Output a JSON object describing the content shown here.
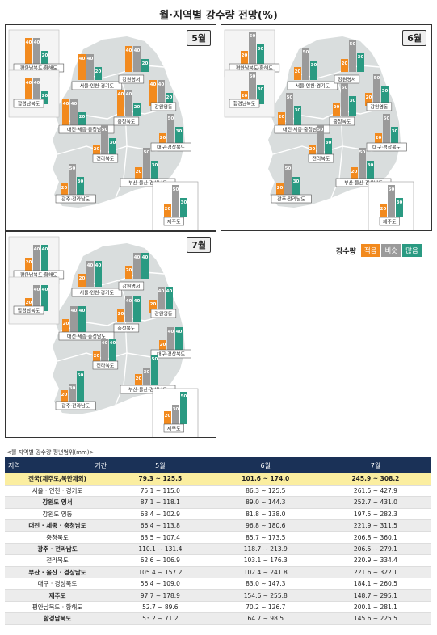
{
  "title": "월·지역별 강수량 전망(%)",
  "colors": {
    "low": "#f28a1e",
    "normal": "#9a9a9a",
    "high": "#2a9a82",
    "land": "#d9dddd",
    "border": "#ffffff",
    "header": "#1a3157",
    "highlight": "#fbeea0"
  },
  "legend": {
    "title": "강수량",
    "items": [
      "적음",
      "비슷",
      "많음"
    ]
  },
  "panels": [
    {
      "month": "5월",
      "regions": [
        {
          "name": "평안남북도·황해도",
          "values": [
            40,
            40,
            20
          ]
        },
        {
          "name": "함경남북도",
          "values": [
            40,
            40,
            20
          ]
        },
        {
          "name": "서울·인천·경기도",
          "values": [
            40,
            40,
            20
          ]
        },
        {
          "name": "강원영서",
          "values": [
            40,
            40,
            20
          ]
        },
        {
          "name": "강원영동",
          "values": [
            40,
            40,
            20
          ]
        },
        {
          "name": "대전·세종·충청남도",
          "values": [
            40,
            40,
            20
          ]
        },
        {
          "name": "충청북도",
          "values": [
            40,
            40,
            20
          ]
        },
        {
          "name": "대구·경상북도",
          "values": [
            20,
            50,
            30
          ]
        },
        {
          "name": "전라북도",
          "values": [
            20,
            50,
            30
          ]
        },
        {
          "name": "부산·울산·경상남도",
          "values": [
            20,
            50,
            30
          ]
        },
        {
          "name": "광주·전라남도",
          "values": [
            20,
            50,
            30
          ]
        },
        {
          "name": "제주도",
          "values": [
            20,
            50,
            30
          ]
        }
      ]
    },
    {
      "month": "6월",
      "regions": [
        {
          "name": "평안남북도·황해도",
          "values": [
            20,
            50,
            30
          ]
        },
        {
          "name": "함경남북도",
          "values": [
            20,
            50,
            30
          ]
        },
        {
          "name": "서울·인천·경기도",
          "values": [
            20,
            50,
            30
          ]
        },
        {
          "name": "강원영서",
          "values": [
            20,
            50,
            30
          ]
        },
        {
          "name": "강원영동",
          "values": [
            20,
            50,
            30
          ]
        },
        {
          "name": "대전·세종·충청남도",
          "values": [
            20,
            50,
            30
          ]
        },
        {
          "name": "충청북도",
          "values": [
            20,
            50,
            30
          ]
        },
        {
          "name": "대구·경상북도",
          "values": [
            20,
            50,
            30
          ]
        },
        {
          "name": "전라북도",
          "values": [
            20,
            50,
            30
          ]
        },
        {
          "name": "부산·울산·경상남도",
          "values": [
            20,
            50,
            30
          ]
        },
        {
          "name": "광주·전라남도",
          "values": [
            20,
            50,
            30
          ]
        },
        {
          "name": "제주도",
          "values": [
            20,
            50,
            30
          ]
        }
      ]
    },
    {
      "month": "7월",
      "regions": [
        {
          "name": "평안남북도·황해도",
          "values": [
            20,
            40,
            40
          ]
        },
        {
          "name": "함경남북도",
          "values": [
            20,
            40,
            40
          ]
        },
        {
          "name": "서울·인천·경기도",
          "values": [
            20,
            40,
            40
          ]
        },
        {
          "name": "강원영서",
          "values": [
            20,
            40,
            40
          ]
        },
        {
          "name": "강원영동",
          "values": [
            20,
            40,
            40
          ]
        },
        {
          "name": "대전·세종·충청남도",
          "values": [
            20,
            40,
            40
          ]
        },
        {
          "name": "충청북도",
          "values": [
            20,
            40,
            40
          ]
        },
        {
          "name": "대구·경상북도",
          "values": [
            20,
            40,
            40
          ]
        },
        {
          "name": "전라북도",
          "values": [
            20,
            40,
            40
          ]
        },
        {
          "name": "부산·울산·경상남도",
          "values": [
            20,
            30,
            50
          ]
        },
        {
          "name": "광주·전라남도",
          "values": [
            20,
            30,
            50
          ]
        },
        {
          "name": "제주도",
          "values": [
            20,
            30,
            50
          ]
        }
      ]
    }
  ],
  "table": {
    "caption": "<월·지역별 강수량 평년범위(mm)>",
    "corner_region": "지역",
    "corner_period": "기간",
    "months": [
      "5월",
      "6월",
      "7월"
    ],
    "rows": [
      {
        "region": "전국(제주도,북한제외)",
        "m5": "79.3 ~ 125.5",
        "m6": "101.6 ~ 174.0",
        "m7": "245.9 ~ 308.2"
      },
      {
        "region": "서울 · 인천 · 경기도",
        "m5": "75.1 ~ 115.0",
        "m6": "86.3 ~ 125.5",
        "m7": "261.5 ~ 427.9"
      },
      {
        "region": "강원도 영서",
        "m5": "87.1 ~ 118.1",
        "m6": "89.0 ~ 144.3",
        "m7": "252.7 ~ 431.0"
      },
      {
        "region": "강원도 영동",
        "m5": "63.4 ~ 102.9",
        "m6": "81.8 ~ 138.0",
        "m7": "197.5 ~ 282.3"
      },
      {
        "region": "대전 · 세종 · 충청남도",
        "m5": "66.4 ~ 113.8",
        "m6": "96.8 ~ 180.6",
        "m7": "221.9 ~ 311.5"
      },
      {
        "region": "충청북도",
        "m5": "63.5 ~ 107.4",
        "m6": "85.7 ~ 173.5",
        "m7": "206.8 ~ 360.1"
      },
      {
        "region": "광주 · 전라남도",
        "m5": "110.1 ~ 131.4",
        "m6": "118.7 ~ 213.9",
        "m7": "206.5 ~ 279.1"
      },
      {
        "region": "전라북도",
        "m5": "62.6 ~ 106.9",
        "m6": "103.1 ~ 176.3",
        "m7": "220.9 ~ 334.4"
      },
      {
        "region": "부산 · 울산 · 경상남도",
        "m5": "105.4 ~ 157.2",
        "m6": "102.4 ~ 241.8",
        "m7": "221.6 ~ 322.1"
      },
      {
        "region": "대구 · 경상북도",
        "m5": "56.4 ~ 109.0",
        "m6": "83.0 ~ 147.3",
        "m7": "184.1 ~ 260.5"
      },
      {
        "region": "제주도",
        "m5": "97.7 ~ 178.9",
        "m6": "154.6 ~ 255.8",
        "m7": "148.7 ~ 295.1"
      },
      {
        "region": "평안남북도 · 황해도",
        "m5": "52.7 ~ 89.6",
        "m6": "70.2 ~ 126.7",
        "m7": "200.1 ~ 281.1"
      },
      {
        "region": "함경남북도",
        "m5": "53.2 ~ 71.2",
        "m6": "64.7 ~ 98.5",
        "m7": "145.6 ~ 225.5"
      }
    ]
  }
}
